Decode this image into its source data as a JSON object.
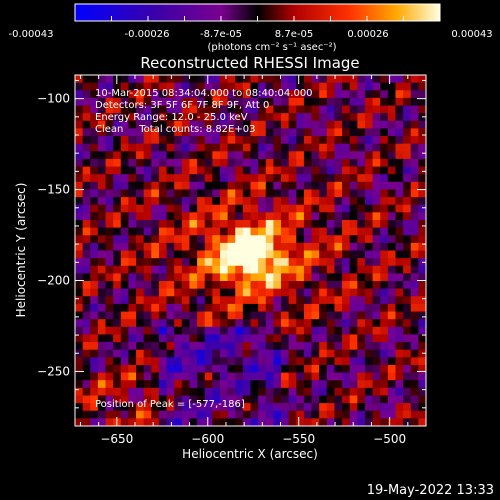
{
  "colorbar": {
    "ticks": [
      "-0.00043",
      "-0.00026",
      "-8.7e-05",
      "8.7e-05",
      "0.00026",
      "0.00043"
    ],
    "units": "(photons cm⁻² s⁻¹ asec⁻²)"
  },
  "footer": {
    "date": "19-May-2022 13:33"
  },
  "chart_data": {
    "type": "heatmap",
    "title": "Reconstructed RHESSI Image",
    "xlabel": "Heliocentric X (arcsec)",
    "ylabel": "Heliocentric Y (arcsec)",
    "xlim": [
      -673,
      -480
    ],
    "ylim": [
      -280,
      -87
    ],
    "xticks": [
      -650,
      -600,
      -550,
      -500
    ],
    "yticks": [
      -100,
      -150,
      -200,
      -250
    ],
    "zlim": [
      -0.00043,
      0.00043
    ],
    "colormap": "rhessi-flame",
    "annotations": [
      "10-Mar-2015 08:34:04.000 to 08:40:04.000",
      "Detectors: 3F 5F 6F 7F 8F 9F, Att 0",
      "Energy Range: 12.0 - 25.0 keV",
      "Clean     Total counts: 8.82E+03"
    ],
    "peak_label": "Position of Peak = [-577,-186]",
    "peak": {
      "x": -577,
      "y": -186
    }
  }
}
